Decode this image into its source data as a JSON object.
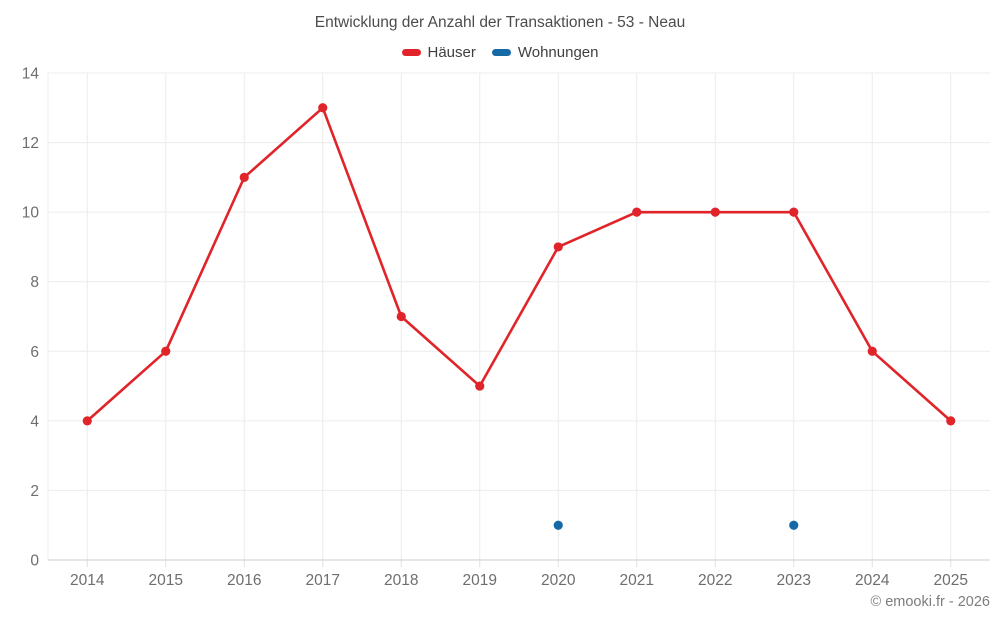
{
  "chart": {
    "title": "Entwicklung der Anzahl der Transaktionen - 53 - Neau",
    "footer": "© emooki.fr - 2026"
  },
  "chart_data": {
    "type": "line",
    "title": "Entwicklung der Anzahl der Transaktionen - 53 - Neau",
    "categories": [
      "2014",
      "2015",
      "2016",
      "2017",
      "2018",
      "2019",
      "2020",
      "2021",
      "2022",
      "2023",
      "2024",
      "2025"
    ],
    "series": [
      {
        "name": "Häuser",
        "color": "#e02429",
        "type": "line-with-markers",
        "values": [
          4,
          6,
          11,
          13,
          7,
          5,
          9,
          10,
          10,
          10,
          6,
          4
        ]
      },
      {
        "name": "Wohnungen",
        "color": "#1569a5",
        "type": "markers-only",
        "values": [
          null,
          null,
          null,
          null,
          null,
          null,
          1,
          null,
          null,
          1,
          null,
          null
        ]
      }
    ],
    "xlabel": "",
    "ylabel": "",
    "ylim": [
      0,
      14
    ],
    "yticks": [
      0,
      2,
      4,
      6,
      8,
      10,
      12,
      14
    ],
    "grid": true,
    "legend_position": "top",
    "colors": {
      "grid_line": "#ececec",
      "axis_line": "#cccccc",
      "axis_tick": "#e0e0e0",
      "axis_label": "#6e6e6e",
      "title_text": "#4c4c4c",
      "legend_text": "#3f3f3f",
      "footer_text": "#7d7d7d"
    }
  }
}
